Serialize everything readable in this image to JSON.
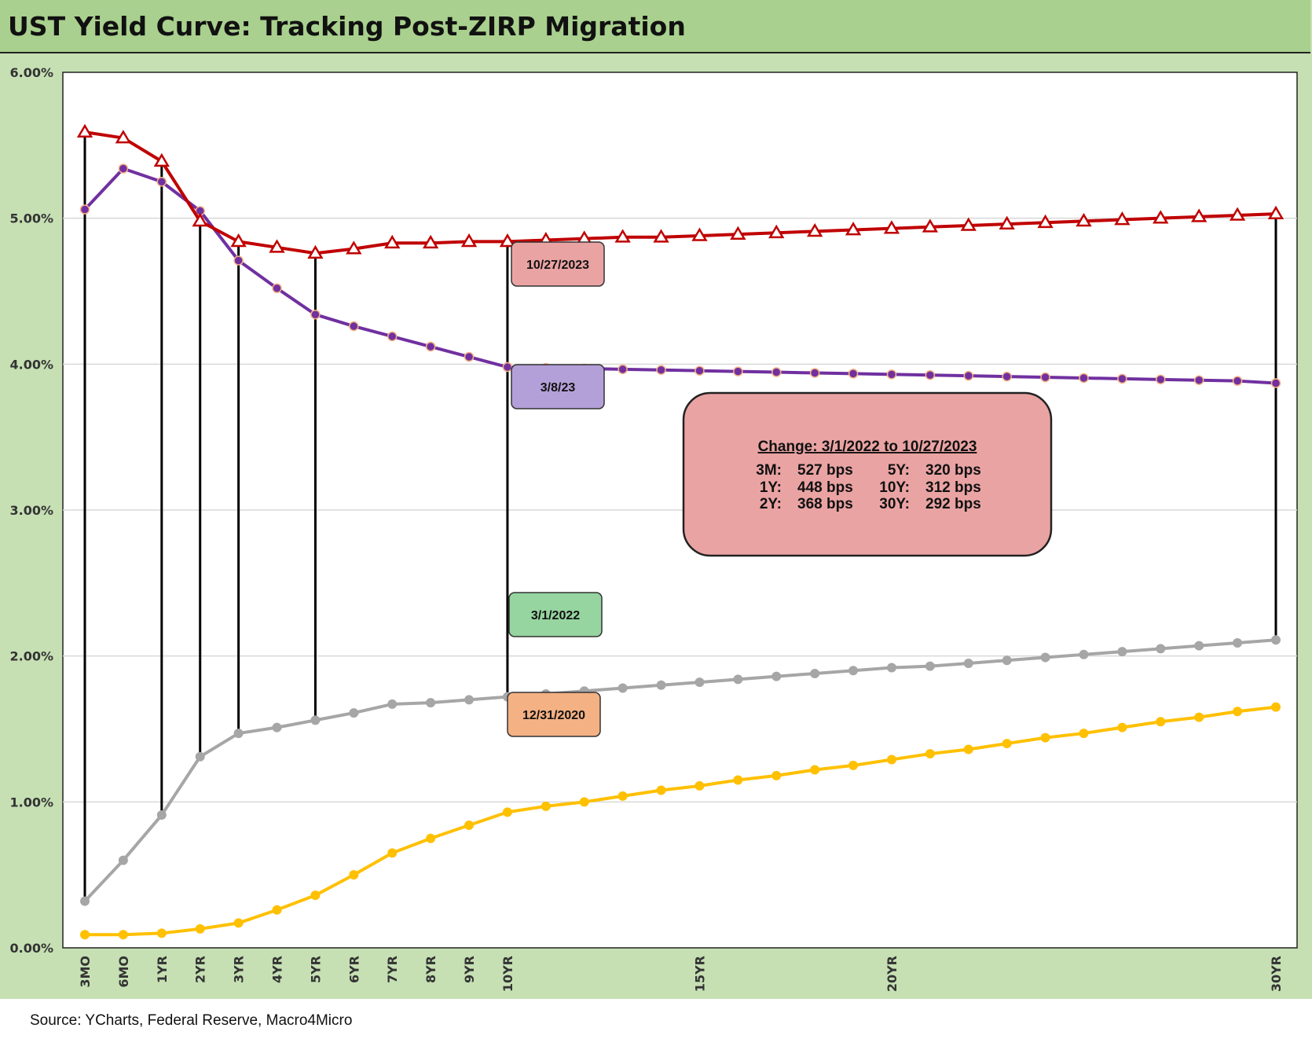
{
  "title": "UST Yield Curve: Tracking Post-ZIRP Migration",
  "source": "Source: YCharts, Federal Reserve, Macro4Micro",
  "chart_data": {
    "type": "line",
    "ylim": [
      0,
      6
    ],
    "yticks": [
      "0.00%",
      "1.00%",
      "2.00%",
      "3.00%",
      "4.00%",
      "5.00%",
      "6.00%"
    ],
    "grid": true,
    "x": [
      0,
      1,
      2,
      3,
      4,
      5,
      6,
      7,
      8,
      9,
      10,
      11,
      12,
      13,
      14,
      15,
      16,
      17,
      18,
      19,
      20,
      21,
      22,
      23,
      24,
      25,
      26,
      27,
      28,
      29,
      30,
      31
    ],
    "xtick_labels": [
      {
        "x": 0,
        "label": "3MO"
      },
      {
        "x": 1,
        "label": "6MO"
      },
      {
        "x": 2,
        "label": "1YR"
      },
      {
        "x": 3,
        "label": "2YR"
      },
      {
        "x": 4,
        "label": "3YR"
      },
      {
        "x": 5,
        "label": "4YR"
      },
      {
        "x": 6,
        "label": "5YR"
      },
      {
        "x": 7,
        "label": "6YR"
      },
      {
        "x": 8,
        "label": "7YR"
      },
      {
        "x": 9,
        "label": "8YR"
      },
      {
        "x": 10,
        "label": "9YR"
      },
      {
        "x": 11,
        "label": "10YR"
      },
      {
        "x": 16,
        "label": "15YR"
      },
      {
        "x": 21,
        "label": "20YR"
      },
      {
        "x": 31,
        "label": "30YR"
      }
    ],
    "series": [
      {
        "name": "10/27/2023",
        "color": "#c00000",
        "marker": "triangle",
        "label_color": "#eaa3a3",
        "values": [
          5.59,
          5.55,
          5.39,
          4.98,
          4.84,
          4.8,
          4.76,
          4.79,
          4.83,
          4.83,
          4.84,
          4.84,
          4.85,
          4.86,
          4.87,
          4.87,
          4.88,
          4.89,
          4.9,
          4.91,
          4.92,
          4.93,
          4.94,
          4.95,
          4.96,
          4.97,
          4.98,
          4.99,
          5.0,
          5.01,
          5.02,
          5.03
        ]
      },
      {
        "name": "3/8/23",
        "color": "#7030a0",
        "marker": "circle",
        "label_color": "#b4a0d8",
        "values": [
          5.06,
          5.34,
          5.25,
          5.05,
          4.71,
          4.52,
          4.34,
          4.26,
          4.19,
          4.12,
          4.05,
          3.98,
          3.975,
          3.97,
          3.965,
          3.96,
          3.955,
          3.95,
          3.945,
          3.94,
          3.935,
          3.93,
          3.925,
          3.92,
          3.915,
          3.91,
          3.905,
          3.9,
          3.895,
          3.89,
          3.885,
          3.87
        ]
      },
      {
        "name": "3/1/2022",
        "color": "#a6a6a6",
        "marker": "circle",
        "label_color": "#96d4a0",
        "values": [
          0.32,
          0.6,
          0.91,
          1.31,
          1.47,
          1.51,
          1.56,
          1.61,
          1.67,
          1.68,
          1.7,
          1.72,
          1.74,
          1.76,
          1.78,
          1.8,
          1.82,
          1.84,
          1.86,
          1.88,
          1.9,
          1.92,
          1.93,
          1.95,
          1.97,
          1.99,
          2.01,
          2.03,
          2.05,
          2.07,
          2.09,
          2.11
        ]
      },
      {
        "name": "12/31/2020",
        "color": "#ffc000",
        "marker": "circle",
        "label_color": "#f4b183",
        "values": [
          0.09,
          0.09,
          0.1,
          0.13,
          0.17,
          0.26,
          0.36,
          0.5,
          0.65,
          0.75,
          0.84,
          0.93,
          0.97,
          1.0,
          1.04,
          1.08,
          1.11,
          1.15,
          1.18,
          1.22,
          1.25,
          1.29,
          1.33,
          1.36,
          1.4,
          1.44,
          1.47,
          1.51,
          1.55,
          1.58,
          1.62,
          1.65
        ]
      }
    ],
    "change_lines_x": [
      0,
      2,
      3,
      4,
      6,
      11,
      31
    ],
    "annotation": {
      "title": "Change: 3/1/2022 to 10/27/2023",
      "rows": [
        [
          {
            "label": "3M:",
            "value": "527 bps"
          },
          {
            "label": "5Y:",
            "value": "320 bps"
          }
        ],
        [
          {
            "label": "1Y:",
            "value": "448 bps"
          },
          {
            "label": "10Y:",
            "value": "312 bps"
          }
        ],
        [
          {
            "label": "2Y:",
            "value": "368 bps"
          },
          {
            "label": "30Y:",
            "value": "292 bps"
          }
        ]
      ]
    }
  }
}
